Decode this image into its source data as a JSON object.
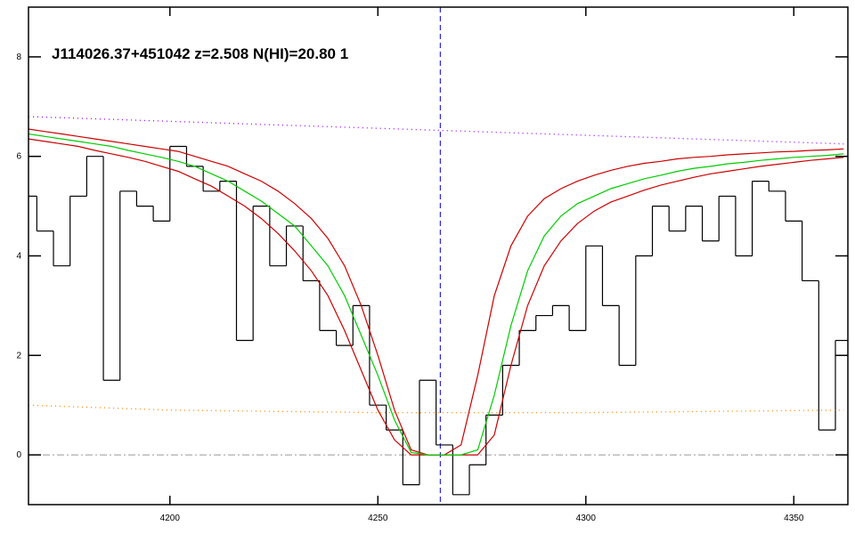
{
  "chart_data": {
    "type": "line",
    "title": "J114026.37+451042 z=2.508 N(HI)=20.80 1",
    "xlim": [
      4166,
      4363
    ],
    "ylim": [
      -1,
      9
    ],
    "xticks": [
      4200,
      4250,
      4300,
      4350
    ],
    "yticks": [
      0,
      2,
      4,
      6,
      8
    ],
    "vline": 4265,
    "hline": 0,
    "x": [
      4166,
      4170,
      4174,
      4178,
      4182,
      4186,
      4190,
      4194,
      4198,
      4202,
      4206,
      4210,
      4214,
      4218,
      4222,
      4226,
      4230,
      4234,
      4238,
      4242,
      4246,
      4250,
      4254,
      4258,
      4262,
      4266,
      4270,
      4274,
      4278,
      4282,
      4286,
      4290,
      4294,
      4298,
      4302,
      4306,
      4310,
      4314,
      4318,
      4322,
      4326,
      4330,
      4334,
      4338,
      4342,
      4346,
      4350,
      4354,
      4358,
      4362
    ],
    "series": [
      {
        "color": "#000000",
        "step": true,
        "values": [
          5.2,
          4.5,
          3.8,
          5.2,
          6.0,
          1.5,
          5.3,
          5.0,
          4.7,
          6.2,
          5.8,
          5.3,
          5.5,
          2.3,
          5.0,
          3.8,
          4.6,
          3.5,
          2.5,
          2.2,
          3.0,
          1.0,
          0.5,
          -0.6,
          1.5,
          0.2,
          -0.8,
          -0.2,
          0.8,
          1.8,
          2.5,
          2.8,
          3.0,
          2.5,
          4.2,
          3.0,
          1.8,
          4.0,
          5.0,
          4.5,
          5.0,
          4.3,
          5.2,
          4.0,
          5.5,
          5.3,
          4.7,
          3.5,
          0.5,
          2.3
        ]
      },
      {
        "color": "#cc0000",
        "values": [
          6.55,
          6.5,
          6.45,
          6.4,
          6.35,
          6.3,
          6.25,
          6.2,
          6.15,
          6.1,
          6.0,
          5.9,
          5.8,
          5.65,
          5.5,
          5.3,
          5.05,
          4.75,
          4.35,
          3.8,
          3.0,
          2.0,
          0.9,
          0.1,
          0,
          0,
          0.2,
          1.6,
          3.2,
          4.2,
          4.8,
          5.15,
          5.35,
          5.5,
          5.62,
          5.72,
          5.8,
          5.86,
          5.9,
          5.95,
          5.98,
          6.0,
          6.03,
          6.05,
          6.07,
          6.09,
          6.1,
          6.12,
          6.13,
          6.15
        ]
      },
      {
        "color": "#cc0000",
        "values": [
          6.35,
          6.3,
          6.25,
          6.2,
          6.12,
          6.05,
          5.98,
          5.9,
          5.8,
          5.7,
          5.55,
          5.4,
          5.2,
          5.0,
          4.75,
          4.45,
          4.1,
          3.7,
          3.2,
          2.5,
          1.7,
          0.9,
          0.3,
          0,
          0,
          0,
          0,
          0,
          0.4,
          1.8,
          3.0,
          3.8,
          4.3,
          4.65,
          4.9,
          5.08,
          5.2,
          5.32,
          5.42,
          5.5,
          5.58,
          5.65,
          5.7,
          5.75,
          5.8,
          5.84,
          5.88,
          5.92,
          5.95,
          5.98
        ]
      },
      {
        "color": "#00cc00",
        "values": [
          6.45,
          6.4,
          6.35,
          6.3,
          6.25,
          6.2,
          6.12,
          6.05,
          5.98,
          5.9,
          5.8,
          5.65,
          5.5,
          5.3,
          5.1,
          4.85,
          4.6,
          4.2,
          3.8,
          3.2,
          2.4,
          1.6,
          0.7,
          0.05,
          0,
          0,
          0,
          0.1,
          1.2,
          2.6,
          3.7,
          4.4,
          4.8,
          5.05,
          5.2,
          5.35,
          5.45,
          5.55,
          5.62,
          5.7,
          5.76,
          5.8,
          5.85,
          5.88,
          5.92,
          5.95,
          5.98,
          6.0,
          6.02,
          6.05
        ]
      },
      {
        "color": "#9900ff",
        "dotted": true,
        "x": [
          4166,
          4362
        ],
        "values": [
          6.8,
          6.25
        ]
      },
      {
        "color": "#ff8800",
        "dotted": true,
        "x": [
          4166,
          4200,
          4250,
          4300,
          4362
        ],
        "values": [
          1.0,
          0.9,
          0.85,
          0.85,
          0.9
        ]
      }
    ]
  }
}
